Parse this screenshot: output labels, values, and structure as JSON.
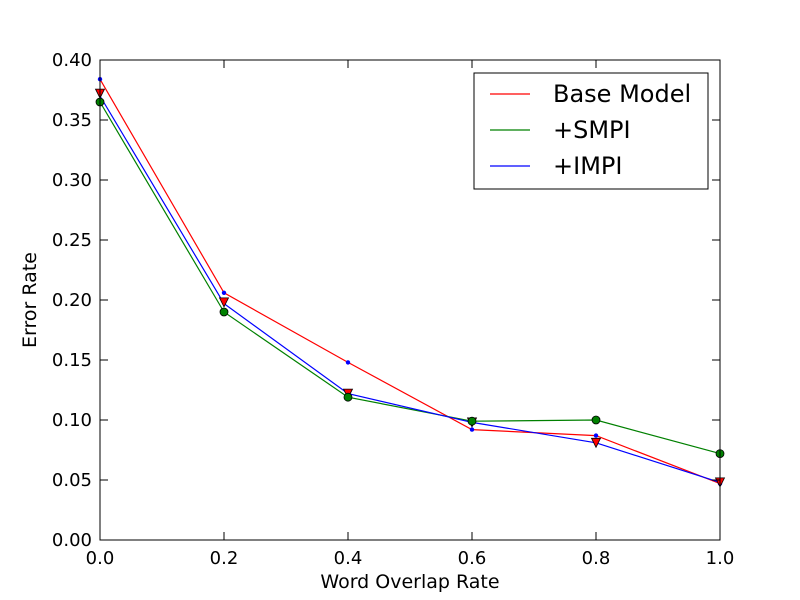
{
  "chart_data": {
    "type": "line",
    "xlabel": "Word Overlap Rate",
    "ylabel": "Error Rate",
    "xlim": [
      0.0,
      1.0
    ],
    "ylim": [
      0.0,
      0.4
    ],
    "x_ticks": [
      "0.0",
      "0.2",
      "0.4",
      "0.6",
      "0.8",
      "1.0"
    ],
    "y_ticks": [
      "0.00",
      "0.05",
      "0.10",
      "0.15",
      "0.20",
      "0.25",
      "0.30",
      "0.35",
      "0.40"
    ],
    "grid": false,
    "legend_position": "top-right",
    "x": [
      0.0,
      0.2,
      0.4,
      0.6,
      0.8,
      1.0
    ],
    "series": [
      {
        "name": "Base Model",
        "color": "#ff0000",
        "marker": "triangle-down",
        "values": [
          0.384,
          0.206,
          0.148,
          0.092,
          0.087,
          0.047
        ]
      },
      {
        "name": "+SMPI",
        "color": "#008000",
        "marker": "circle",
        "values": [
          0.365,
          0.19,
          0.119,
          0.099,
          0.1,
          0.072
        ]
      },
      {
        "name": "+IMPI",
        "color": "#0000ff",
        "marker": "point",
        "values": [
          0.37,
          0.197,
          0.122,
          0.098,
          0.081,
          0.048
        ]
      }
    ],
    "triangle_markers": [
      0.372,
      0.198,
      0.122,
      0.098,
      0.081,
      0.048
    ]
  }
}
